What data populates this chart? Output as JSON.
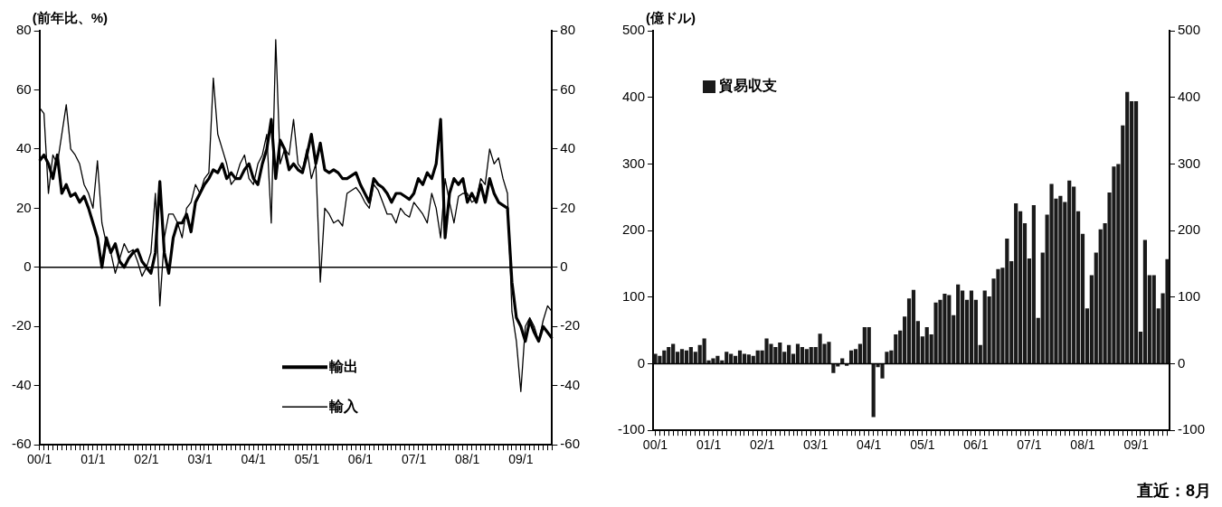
{
  "chart_data": [
    {
      "type": "line",
      "ylabel": "(前年比、%)",
      "categories": [
        "00/1",
        null,
        null,
        null,
        null,
        null,
        null,
        null,
        null,
        null,
        null,
        null,
        "01/1",
        null,
        null,
        null,
        null,
        null,
        null,
        null,
        null,
        null,
        null,
        null,
        "02/1",
        null,
        null,
        null,
        null,
        null,
        null,
        null,
        null,
        null,
        null,
        null,
        "03/1",
        null,
        null,
        null,
        null,
        null,
        null,
        null,
        null,
        null,
        null,
        null,
        "04/1",
        null,
        null,
        null,
        null,
        null,
        null,
        null,
        null,
        null,
        null,
        null,
        "05/1",
        null,
        null,
        null,
        null,
        null,
        null,
        null,
        null,
        null,
        null,
        null,
        "06/1",
        null,
        null,
        null,
        null,
        null,
        null,
        null,
        null,
        null,
        null,
        null,
        "07/1",
        null,
        null,
        null,
        null,
        null,
        null,
        null,
        null,
        null,
        null,
        null,
        "08/1",
        null,
        null,
        null,
        null,
        null,
        null,
        null,
        null,
        null,
        null,
        null,
        "09/1",
        null,
        null,
        null,
        null,
        null,
        null,
        null
      ],
      "series": [
        {
          "name": "輸出",
          "color": "#000000",
          "values": [
            36,
            38,
            35,
            30,
            38,
            25,
            28,
            24,
            25,
            22,
            24,
            20,
            15,
            10,
            0,
            10,
            5,
            8,
            2,
            0,
            3,
            5,
            6,
            2,
            0,
            -2,
            5,
            29,
            5,
            -2,
            10,
            15,
            15,
            18,
            12,
            22,
            25,
            28,
            30,
            33,
            32,
            35,
            30,
            32,
            30,
            30,
            33,
            35,
            30,
            28,
            35,
            40,
            50,
            30,
            43,
            40,
            33,
            35,
            33,
            32,
            38,
            45,
            35,
            42,
            33,
            32,
            33,
            32,
            30,
            30,
            31,
            32,
            28,
            25,
            22,
            30,
            28,
            27,
            25,
            22,
            25,
            25,
            24,
            23,
            25,
            30,
            28,
            32,
            30,
            35,
            50,
            10,
            25,
            30,
            28,
            30,
            22,
            25,
            22,
            28,
            22,
            30,
            25,
            22,
            21,
            20,
            -5,
            -17,
            -20,
            -25,
            -18,
            -22,
            -25,
            -20,
            -22,
            -24
          ]
        },
        {
          "name": "輸入",
          "color": "#000000",
          "values": [
            54,
            52,
            25,
            38,
            35,
            45,
            55,
            40,
            38,
            35,
            28,
            25,
            20,
            36,
            15,
            8,
            5,
            -2,
            3,
            8,
            5,
            6,
            2,
            -3,
            0,
            5,
            25,
            -13,
            10,
            18,
            18,
            15,
            10,
            20,
            22,
            28,
            25,
            30,
            32,
            64,
            45,
            40,
            35,
            28,
            30,
            35,
            38,
            30,
            28,
            35,
            38,
            45,
            15,
            77,
            35,
            40,
            38,
            50,
            35,
            33,
            40,
            30,
            35,
            -5,
            20,
            18,
            15,
            16,
            14,
            25,
            26,
            27,
            25,
            22,
            20,
            28,
            26,
            22,
            18,
            18,
            15,
            20,
            18,
            17,
            22,
            20,
            18,
            15,
            25,
            20,
            10,
            30,
            22,
            15,
            24,
            25,
            25,
            22,
            23,
            30,
            28,
            40,
            35,
            37,
            30,
            25,
            -15,
            -25,
            -42,
            -20,
            -17,
            -20,
            -25,
            -18,
            -13,
            -15
          ]
        }
      ],
      "ylim": [
        -60,
        80
      ],
      "yticks": [
        -60,
        -40,
        -20,
        0,
        20,
        40,
        60,
        80
      ],
      "y2lim": [
        -60,
        80
      ],
      "y2ticks": [
        -60,
        -40,
        -20,
        0,
        20,
        40,
        60,
        80
      ],
      "ref_lines": [
        {
          "axis": "y",
          "value": 0
        }
      ],
      "legend": "bottom",
      "marker": "none",
      "line_style": "solid"
    },
    {
      "type": "bar",
      "ylabel": "(億ドル)",
      "categories": [
        "00/1",
        null,
        null,
        null,
        null,
        null,
        null,
        null,
        null,
        null,
        null,
        null,
        "01/1",
        null,
        null,
        null,
        null,
        null,
        null,
        null,
        null,
        null,
        null,
        null,
        "02/1",
        null,
        null,
        null,
        null,
        null,
        null,
        null,
        null,
        null,
        null,
        null,
        "03/1",
        null,
        null,
        null,
        null,
        null,
        null,
        null,
        null,
        null,
        null,
        null,
        "04/1",
        null,
        null,
        null,
        null,
        null,
        null,
        null,
        null,
        null,
        null,
        null,
        "05/1",
        null,
        null,
        null,
        null,
        null,
        null,
        null,
        null,
        null,
        null,
        null,
        "06/1",
        null,
        null,
        null,
        null,
        null,
        null,
        null,
        null,
        null,
        null,
        null,
        "07/1",
        null,
        null,
        null,
        null,
        null,
        null,
        null,
        null,
        null,
        null,
        null,
        "08/1",
        null,
        null,
        null,
        null,
        null,
        null,
        null,
        null,
        null,
        null,
        null,
        "09/1",
        null,
        null,
        null,
        null,
        null,
        null,
        null
      ],
      "series": [
        {
          "name": "貿易収支",
          "color": "#1a1a1a",
          "values": [
            15,
            12,
            20,
            25,
            30,
            18,
            22,
            20,
            25,
            18,
            28,
            38,
            5,
            8,
            12,
            5,
            18,
            15,
            12,
            20,
            15,
            14,
            12,
            20,
            20,
            38,
            30,
            25,
            32,
            18,
            28,
            15,
            30,
            25,
            22,
            25,
            25,
            45,
            30,
            33,
            -14,
            -4,
            8,
            -3,
            20,
            22,
            30,
            55,
            55,
            -80,
            -5,
            -22,
            18,
            20,
            44,
            50,
            71,
            98,
            111,
            64,
            41,
            55,
            44,
            92,
            96,
            105,
            103,
            73,
            119,
            110,
            96,
            110,
            96,
            28,
            110,
            101,
            128,
            142,
            144,
            188,
            154,
            241,
            229,
            211,
            158,
            238,
            69,
            167,
            224,
            270,
            248,
            252,
            243,
            275,
            266,
            229,
            195,
            83,
            133,
            167,
            202,
            211,
            257,
            296,
            300,
            358,
            408,
            394,
            394,
            48,
            186,
            133,
            133,
            83,
            106,
            157
          ]
        }
      ],
      "ylim": [
        -100,
        500
      ],
      "yticks": [
        -100,
        0,
        100,
        200,
        300,
        400,
        500
      ],
      "y2lim": [
        -100,
        500
      ],
      "y2ticks": [
        -100,
        0,
        100,
        200,
        300,
        400,
        500
      ],
      "ref_lines": [
        {
          "axis": "y",
          "value": 0
        }
      ],
      "legend": "top left",
      "annotations": [
        "直近：8月"
      ]
    }
  ]
}
